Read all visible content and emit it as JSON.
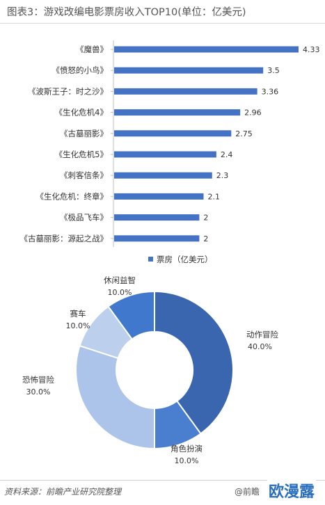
{
  "title": "图表3：游戏改编电影票房收入TOP10(单位：亿美元)",
  "footer": {
    "source": "资料来源：前瞻产业研究院整理",
    "handle": "@前瞻",
    "brand": "欧漫露"
  },
  "colors": {
    "bar": "#4472c4",
    "donut": [
      "#3a66b0",
      "#4a7fcf",
      "#adc4ea",
      "#bcd0ee",
      "#3f78cc"
    ]
  },
  "chart_data": [
    {
      "type": "bar",
      "orientation": "horizontal",
      "categories": [
        "《魔兽》",
        "《愤怒的小鸟》",
        "《波斯王子：时之沙》",
        "《生化危机4》",
        "《古墓丽影》",
        "《生化危机5》",
        "《刺客信条》",
        "《生化危机：终章》",
        "《极品飞车》",
        "《古墓丽影：源起之战》"
      ],
      "values": [
        4.33,
        3.5,
        3.36,
        2.96,
        2.75,
        2.4,
        2.3,
        2.1,
        2,
        2
      ],
      "value_labels": [
        "4.33",
        "3.5",
        "3.36",
        "2.96",
        "2.75",
        "2.4",
        "2.3",
        "2.1",
        "2",
        "2"
      ],
      "legend": "票房（亿美元）",
      "legend_position": "bottom",
      "xlim": [
        0,
        4.6
      ],
      "grid": false
    },
    {
      "type": "pie",
      "style": "donut",
      "slices": [
        {
          "label": "动作冒险",
          "value": 40.0,
          "pct": "40.0%"
        },
        {
          "label": "角色扮演",
          "value": 10.0,
          "pct": "10.0%"
        },
        {
          "label": "恐怖冒险",
          "value": 30.0,
          "pct": "30.0%"
        },
        {
          "label": "赛车",
          "value": 10.0,
          "pct": "10.0%"
        },
        {
          "label": "休闲益智",
          "value": 10.0,
          "pct": "10.0%"
        }
      ]
    }
  ]
}
